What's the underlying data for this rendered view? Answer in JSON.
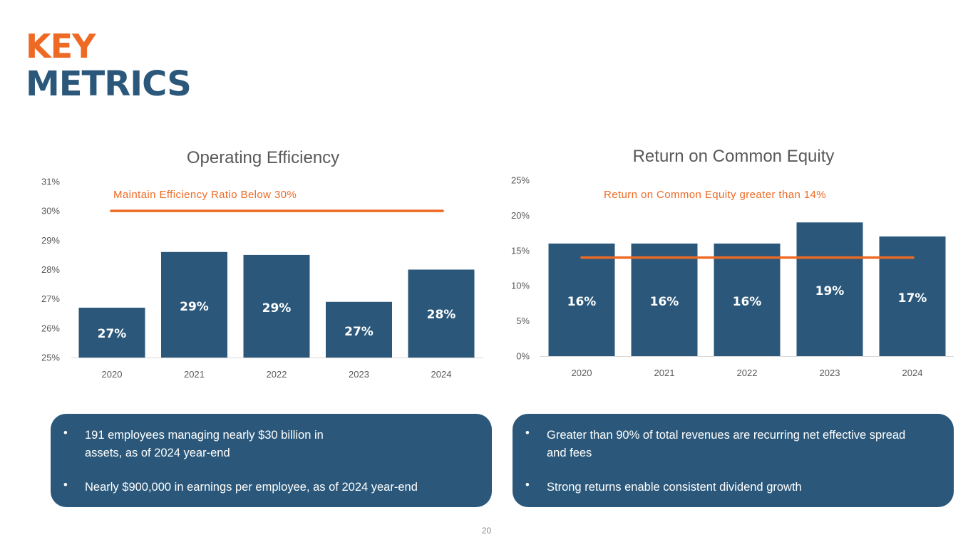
{
  "header": {
    "title_line1": "KEY",
    "title_line2": "METRICS"
  },
  "colors": {
    "bar": "#2b587a",
    "target": "#ee6a24",
    "title_accent": "#ee6a24",
    "title_main": "#2b587a",
    "axis_text": "#595959"
  },
  "chart_data": [
    {
      "type": "bar",
      "title": "Operating Efficiency",
      "categories": [
        "2020",
        "2021",
        "2022",
        "2023",
        "2024"
      ],
      "values": [
        26.7,
        28.6,
        28.5,
        26.9,
        28.0
      ],
      "data_labels": [
        "27%",
        "29%",
        "29%",
        "27%",
        "28%"
      ],
      "ylim": [
        25,
        31
      ],
      "yticks": [
        25,
        26,
        27,
        28,
        29,
        30,
        31
      ],
      "ytick_labels": [
        "25%",
        "26%",
        "27%",
        "28%",
        "29%",
        "30%",
        "31%"
      ],
      "target": {
        "value": 30,
        "label": "Maintain Efficiency Ratio Below 30%"
      },
      "xlabel": "",
      "ylabel": "",
      "grid": false
    },
    {
      "type": "bar",
      "title": "Return on Common Equity",
      "categories": [
        "2020",
        "2021",
        "2022",
        "2023",
        "2024"
      ],
      "values": [
        16,
        16,
        16,
        19,
        17
      ],
      "data_labels": [
        "16%",
        "16%",
        "16%",
        "19%",
        "17%"
      ],
      "ylim": [
        0,
        25
      ],
      "yticks": [
        0,
        5,
        10,
        15,
        20,
        25
      ],
      "ytick_labels": [
        "0%",
        "5%",
        "10%",
        "15%",
        "20%",
        "25%"
      ],
      "target": {
        "value": 14,
        "label": "Return on Common Equity greater than 14%"
      },
      "xlabel": "",
      "ylabel": "",
      "grid": false
    }
  ],
  "boxes": {
    "left": {
      "bullets": [
        "191 employees managing nearly $30 billion in assets, as of 2024 year-end",
        "Nearly $900,000 in earnings per employee, as of 2024 year-end"
      ]
    },
    "right": {
      "bullets": [
        "Greater than 90% of total revenues are recurring net effective spread and fees",
        "Strong returns enable consistent dividend growth"
      ]
    }
  },
  "bullet_symbol": "•",
  "page_number": "20"
}
